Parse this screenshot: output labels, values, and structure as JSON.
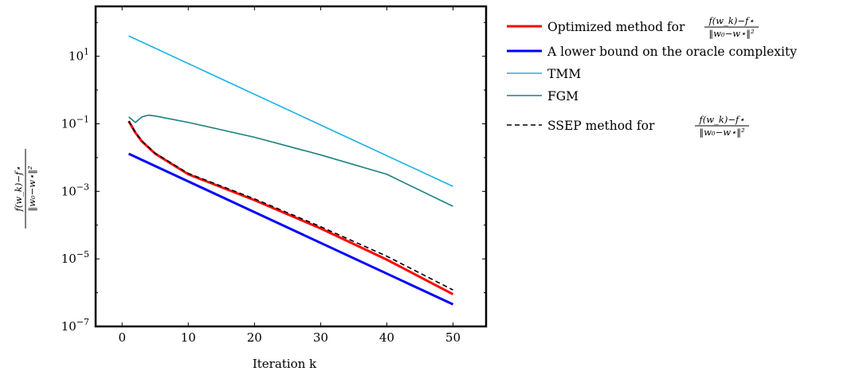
{
  "chart_data": {
    "type": "line",
    "xlabel": "Iteration k",
    "ylabel": "f(w_k)−f⋆ / ‖w₀−w⋆‖²",
    "yscale": "log",
    "xlim": [
      -4,
      55
    ],
    "ylim": [
      1e-07,
      300
    ],
    "xticks": [
      0,
      10,
      20,
      30,
      40,
      50
    ],
    "xtick_labels": [
      "0",
      "10",
      "20",
      "30",
      "40",
      "50"
    ],
    "yticks": [
      1e-07,
      1e-05,
      0.001,
      0.1,
      10
    ],
    "ytick_labels": [
      "10^-7",
      "10^-5",
      "10^-3",
      "10^-1",
      "10^1"
    ],
    "legend_position": "outside-right",
    "series": [
      {
        "name": "Optimized method for f(w_k)−f⋆ / ‖w₀−w⋆‖²",
        "color": "#ff0000",
        "dash": "solid",
        "x": [
          1,
          2,
          3,
          5,
          10,
          20,
          30,
          40,
          50
        ],
        "y": [
          0.12,
          0.055,
          0.03,
          0.013,
          0.0032,
          0.00055,
          8e-05,
          9.5e-06,
          9e-07
        ]
      },
      {
        "name": "A lower bound on the oracle complexity",
        "color": "#0000ff",
        "dash": "solid",
        "x": [
          1,
          50
        ],
        "y": [
          0.013,
          4.5e-07
        ]
      },
      {
        "name": "TMM",
        "color": "#1ab2e6",
        "dash": "solid",
        "x": [
          1,
          50
        ],
        "y": [
          40,
          0.0014
        ]
      },
      {
        "name": "FGM",
        "color": "#1a8080",
        "dash": "solid",
        "x": [
          1,
          2,
          3,
          4,
          5,
          10,
          20,
          30,
          40,
          50
        ],
        "y": [
          0.16,
          0.11,
          0.16,
          0.18,
          0.17,
          0.11,
          0.04,
          0.012,
          0.0032,
          0.00036
        ]
      },
      {
        "name": "SSEP method for f(w_k)−f⋆ / ‖w₀−w⋆‖²",
        "color": "#000000",
        "dash": "dashed",
        "x": [
          1,
          2,
          3,
          5,
          10,
          20,
          30,
          40,
          50
        ],
        "y": [
          0.12,
          0.056,
          0.031,
          0.0135,
          0.0034,
          0.0006,
          9e-05,
          1.2e-05,
          1.2e-06
        ]
      }
    ]
  },
  "legend": {
    "optimized_prefix": "Optimized method for",
    "lower_bound": "A lower bound on the oracle complexity",
    "tmm": "TMM",
    "fgm": "FGM",
    "ssep_prefix": "SSEP method for",
    "frac_num": "f(w_k)−f⋆",
    "frac_den": "‖w₀−w⋆‖²"
  }
}
